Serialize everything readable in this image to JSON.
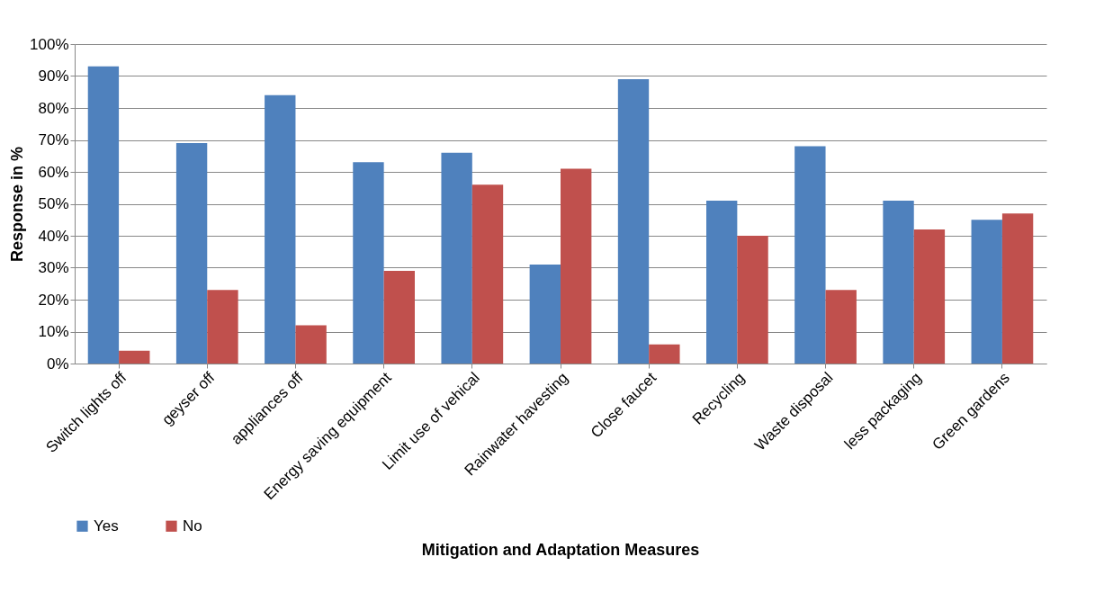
{
  "chart_data": {
    "type": "bar",
    "xlabel": "Mitigation and Adaptation Measures",
    "ylabel": "Response in %",
    "categories": [
      "Switch lights off",
      "geyser off",
      "appliances off",
      "Energy saving equipment",
      "Limit use of vehical",
      "Rainwater havesting",
      "Close faucet",
      "Recycling",
      "Waste disposal",
      "less packaging",
      "Green gardens"
    ],
    "series": [
      {
        "name": "Yes",
        "color": "#4f81bd",
        "values": [
          93,
          69,
          84,
          63,
          66,
          31,
          89,
          51,
          68,
          51,
          45
        ]
      },
      {
        "name": "No",
        "color": "#c0504d",
        "values": [
          4,
          23,
          12,
          29,
          56,
          61,
          6,
          40,
          23,
          42,
          47
        ]
      }
    ],
    "ylim": [
      0,
      100
    ],
    "yticks": [
      {
        "value": 0,
        "label": "0%"
      },
      {
        "value": 10,
        "label": "10%"
      },
      {
        "value": 20,
        "label": "20%"
      },
      {
        "value": 30,
        "label": "30%"
      },
      {
        "value": 40,
        "label": "40%"
      },
      {
        "value": 50,
        "label": "50%"
      },
      {
        "value": 60,
        "label": "60%"
      },
      {
        "value": 70,
        "label": "70%"
      },
      {
        "value": 80,
        "label": "80%"
      },
      {
        "value": 90,
        "label": "90%"
      },
      {
        "value": 100,
        "label": "100%"
      }
    ],
    "grid": "y",
    "legend": "bottom"
  }
}
